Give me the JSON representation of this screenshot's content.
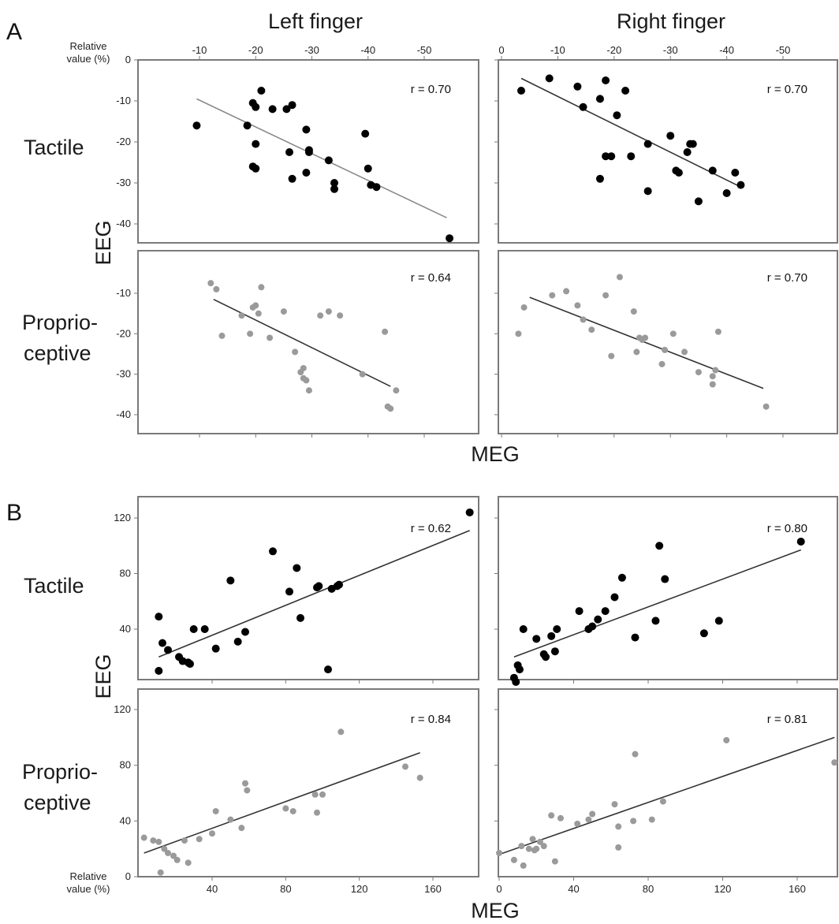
{
  "panel_labels": {
    "a": "A",
    "b": "B"
  },
  "column_titles": {
    "left": "Left finger",
    "right": "Right finger"
  },
  "row_labels": {
    "tactile": "Tactile",
    "proprio_1": "Proprio-",
    "proprio_2": "ceptive"
  },
  "axis_titles": {
    "eeg": "EEG",
    "meg": "MEG",
    "relative_1": "Relative",
    "relative_2": "value (%)"
  },
  "colors": {
    "tactile_dot": "#000000",
    "proprio_dot": "#9a9a9a",
    "fit_line_left_tactile": "#8a8a8a",
    "fit_line": "#333333",
    "frame": "#7a7a7a"
  },
  "chart_data": [
    {
      "id": "A-left-tactile",
      "type": "scatter",
      "section": "A",
      "column": "Left finger",
      "row": "Tactile",
      "r_label": "r = 0.70",
      "xlim": [
        -2,
        -57
      ],
      "ylim": [
        0,
        -45
      ],
      "xticks": [
        -10,
        -20,
        -30,
        -40,
        -50
      ],
      "yticks": [
        0,
        -10,
        -20,
        -30,
        -40
      ],
      "xticklabels": [
        "-10",
        "-20",
        "-30",
        "-40",
        "-50"
      ],
      "yticklabels": [
        "0",
        "-10",
        "-20",
        "-30",
        "-40"
      ],
      "x": [
        -9.5,
        -18.5,
        -19.5,
        -20,
        -21,
        -23,
        -20,
        -19.5,
        -20,
        -25.5,
        -26.5,
        -26,
        -26.5,
        -29,
        -29,
        -29.5,
        -29.5,
        -33,
        -34,
        -34,
        -39.5,
        -40,
        -40.5,
        -41.5,
        -54.5
      ],
      "y": [
        -16,
        -16,
        -10.5,
        -11.5,
        -7.5,
        -12,
        -20.5,
        -26,
        -26.5,
        -12,
        -11,
        -22.5,
        -29,
        -17,
        -27.5,
        -22,
        -22.5,
        -24.5,
        -30,
        -31.5,
        -18,
        -26.5,
        -30.5,
        -31,
        -43.5
      ],
      "fit": {
        "x": [
          -9.5,
          -54
        ],
        "y": [
          -9.5,
          -38.5
        ]
      }
    },
    {
      "id": "A-right-tactile",
      "type": "scatter",
      "section": "A",
      "column": "Right finger",
      "row": "Tactile",
      "r_label": "r = 0.70",
      "xlim": [
        0,
        -54.5
      ],
      "ylim": [
        0,
        -45
      ],
      "xticks": [
        0,
        -10,
        -20,
        -30,
        -40,
        -50
      ],
      "yticks": [
        0,
        -10,
        -20,
        -30,
        -40
      ],
      "xticklabels": [
        "0",
        "-10",
        "-20",
        "-30",
        "-40",
        "-50"
      ],
      "yticklabels": [],
      "x": [
        -3.5,
        -8.5,
        -13.5,
        -14.5,
        -17.5,
        -18.5,
        -19.5,
        -20.5,
        -22,
        -18.5,
        -17.5,
        -23,
        -26,
        -26,
        -30,
        -31,
        -31.5,
        -33,
        -33.5,
        -34,
        -35,
        -37.5,
        -40,
        -41.5,
        -42.5
      ],
      "y": [
        -7.5,
        -4.5,
        -6.5,
        -11.5,
        -9.5,
        -5,
        -23.5,
        -13.5,
        -7.5,
        -23.5,
        -29,
        -23.5,
        -20.5,
        -32,
        -18.5,
        -27,
        -27.5,
        -22.5,
        -20.5,
        -20.5,
        -34.5,
        -27,
        -32.5,
        -27.5,
        -30.5
      ],
      "fit": {
        "x": [
          -3.5,
          -42.5
        ],
        "y": [
          -4.5,
          -31
        ]
      }
    },
    {
      "id": "A-left-proprioceptive",
      "type": "scatter",
      "section": "A",
      "column": "Left finger",
      "row": "Proprioceptive",
      "r_label": "r = 0.64",
      "xlim": [
        -2,
        -57
      ],
      "ylim": [
        -5,
        -45
      ],
      "xticks": [
        -10,
        -20,
        -30,
        -40,
        -50
      ],
      "yticks": [
        -10,
        -20,
        -30,
        -40
      ],
      "xticklabels": [],
      "yticklabels": [
        "-10",
        "-20",
        "-30",
        "-40"
      ],
      "x": [
        -12,
        -13,
        -14,
        -17.5,
        -19,
        -19.5,
        -20,
        -20.5,
        -21,
        -22.5,
        -25,
        -27,
        -28,
        -28.5,
        -28.5,
        -29,
        -29.5,
        -31.5,
        -33,
        -35,
        -39,
        -43,
        -43.5,
        -44,
        -45
      ],
      "y": [
        -7.5,
        -9,
        -20.5,
        -15.5,
        -20,
        -13.5,
        -13,
        -15,
        -8.5,
        -21,
        -14.5,
        -24.5,
        -29.5,
        -28.5,
        -31,
        -31.5,
        -34,
        -15.5,
        -14.5,
        -15.5,
        -30,
        -19.5,
        -38,
        -38.5,
        -34
      ],
      "fit": {
        "x": [
          -12.5,
          -44
        ],
        "y": [
          -11.5,
          -33
        ]
      }
    },
    {
      "id": "A-right-proprioceptive",
      "type": "scatter",
      "section": "A",
      "column": "Right finger",
      "row": "Proprioceptive",
      "r_label": "r = 0.70",
      "xlim": [
        0,
        -54.5
      ],
      "ylim": [
        -5,
        -45
      ],
      "xticks": [
        0,
        -10,
        -20,
        -30,
        -40,
        -50
      ],
      "yticks": [
        -10,
        -20,
        -30,
        -40
      ],
      "xticklabels": [],
      "yticklabels": [],
      "x": [
        -3,
        -4,
        -9,
        -11.5,
        -13.5,
        -14.5,
        -16,
        -18.5,
        -19.5,
        -21,
        -24,
        -23.5,
        -24.5,
        -25,
        -25.5,
        -28.5,
        -29,
        -30.5,
        -32.5,
        -35,
        -37.5,
        -37.5,
        -38,
        -38.5,
        -47
      ],
      "y": [
        -20,
        -13.5,
        -10.5,
        -9.5,
        -13,
        -16.5,
        -19,
        -10.5,
        -25.5,
        -6,
        -24.5,
        -14.5,
        -21,
        -21.5,
        -21,
        -27.5,
        -24,
        -20,
        -24.5,
        -29.5,
        -32.5,
        -30.5,
        -29,
        -19.5,
        -38
      ],
      "fit": {
        "x": [
          -5,
          -46.5
        ],
        "y": [
          -11,
          -33.5
        ]
      }
    },
    {
      "id": "B-left-tactile",
      "type": "scatter",
      "section": "B",
      "column": "Left finger",
      "row": "Tactile",
      "r_label": "r = 0.62",
      "xlim": [
        0,
        185
      ],
      "ylim": [
        0,
        130
      ],
      "xticks": [
        40,
        80,
        120,
        160
      ],
      "yticks": [
        40,
        80,
        120
      ],
      "xticklabels": [],
      "yticklabels": [
        "40",
        "80",
        "120"
      ],
      "x": [
        11,
        11,
        13,
        16,
        22,
        24,
        27,
        28,
        30,
        36,
        42,
        50,
        54,
        58,
        73,
        82,
        86,
        88,
        97,
        98,
        103,
        105,
        108,
        109,
        180
      ],
      "y": [
        49,
        10,
        30,
        25,
        20,
        17,
        16,
        15,
        40,
        40,
        26,
        75,
        31,
        38,
        96,
        67,
        84,
        48,
        70,
        71,
        11,
        69,
        71,
        72,
        124
      ],
      "fit": {
        "x": [
          11,
          180
        ],
        "y": [
          20,
          111
        ]
      }
    },
    {
      "id": "B-right-tactile",
      "type": "scatter",
      "section": "B",
      "column": "Right finger",
      "row": "Tactile",
      "r_label": "r = 0.80",
      "xlim": [
        0,
        185
      ],
      "ylim": [
        0,
        130
      ],
      "xticks": [
        40,
        80,
        120,
        160
      ],
      "yticks": [
        40,
        80,
        120
      ],
      "xticklabels": [],
      "yticklabels": [],
      "x": [
        8,
        9,
        10,
        11,
        13,
        20,
        24,
        25,
        28,
        30,
        31,
        43,
        48,
        50,
        53,
        57,
        62,
        66,
        73,
        84,
        86,
        89,
        110,
        118,
        162
      ],
      "y": [
        5,
        2,
        14,
        11,
        40,
        33,
        22,
        20,
        35,
        24,
        40,
        53,
        40,
        42,
        47,
        53,
        63,
        77,
        34,
        46,
        100,
        76,
        37,
        46,
        103
      ],
      "fit": {
        "x": [
          8,
          162
        ],
        "y": [
          20,
          97
        ]
      }
    },
    {
      "id": "B-left-proprioceptive",
      "type": "scatter",
      "section": "B",
      "column": "Left finger",
      "row": "Proprioceptive",
      "r_label": "r = 0.84",
      "xlim": [
        0,
        185
      ],
      "ylim": [
        0,
        130
      ],
      "xticks": [
        40,
        80,
        120,
        160
      ],
      "yticks": [
        0,
        40,
        80,
        120
      ],
      "xticklabels": [
        "40",
        "80",
        "120",
        "160"
      ],
      "yticklabels": [
        "0",
        "40",
        "80",
        "120"
      ],
      "x": [
        3,
        8,
        11,
        12,
        14,
        16,
        19,
        21,
        25,
        27,
        33,
        40,
        42,
        50,
        56,
        58,
        59,
        80,
        84,
        96,
        97,
        100,
        110,
        145,
        153
      ],
      "y": [
        28,
        26,
        25,
        3,
        20,
        17,
        15,
        12,
        26,
        10,
        27,
        31,
        47,
        41,
        35,
        67,
        62,
        49,
        47,
        59,
        46,
        59,
        104,
        79,
        71
      ],
      "fit": {
        "x": [
          3,
          153
        ],
        "y": [
          17,
          89
        ]
      }
    },
    {
      "id": "B-right-proprioceptive",
      "type": "scatter",
      "section": "B",
      "column": "Right finger",
      "row": "Proprioceptive",
      "r_label": "r = 0.81",
      "xlim": [
        0,
        185
      ],
      "ylim": [
        0,
        130
      ],
      "xticks": [
        0,
        40,
        80,
        120,
        160
      ],
      "yticks": [
        40,
        80,
        120
      ],
      "xticklabels": [
        "0",
        "40",
        "80",
        "120",
        "160"
      ],
      "yticklabels": [],
      "x": [
        0,
        8,
        12,
        13,
        16,
        18,
        19,
        20,
        22,
        24,
        28,
        30,
        33,
        42,
        48,
        50,
        62,
        64,
        64,
        72,
        73,
        82,
        88,
        122,
        180
      ],
      "y": [
        17,
        12,
        22,
        8,
        20,
        27,
        19,
        20,
        25,
        22,
        44,
        11,
        42,
        38,
        41,
        45,
        52,
        21,
        36,
        40,
        88,
        41,
        54,
        98,
        82
      ],
      "fit": {
        "x": [
          0,
          180
        ],
        "y": [
          16,
          100
        ]
      }
    }
  ]
}
